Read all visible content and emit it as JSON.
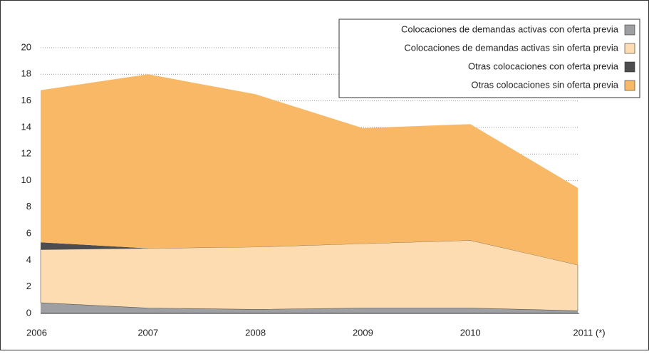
{
  "chart_data": {
    "type": "stacked_area",
    "categories": [
      "2006",
      "2007",
      "2008",
      "2009",
      "2010",
      "2011 (*)"
    ],
    "series": [
      {
        "name": "Colocaciones de demandas activas con oferta previa",
        "color": "#9d9fa2",
        "values": [
          0.8,
          0.4,
          0.3,
          0.4,
          0.4,
          0.2
        ]
      },
      {
        "name": "Colocaciones de demandas activas sin oferta previa",
        "color": "#fcdcb0",
        "values": [
          4.0,
          4.5,
          4.7,
          4.85,
          5.1,
          3.45
        ]
      },
      {
        "name": "Otras colocaciones con oferta previa",
        "color": "#4d4d4f",
        "values": [
          0.55,
          0,
          0,
          0,
          0,
          0
        ]
      },
      {
        "name": "Otras colocaciones sin oferta previa",
        "color": "#f9b865",
        "values": [
          11.45,
          13.1,
          11.5,
          8.7,
          8.75,
          5.8
        ]
      }
    ],
    "ylim": [
      0,
      20
    ],
    "yticks": [
      0,
      2,
      4,
      6,
      8,
      10,
      12,
      14,
      16,
      18,
      20
    ],
    "grid": true,
    "legend": "top-right"
  }
}
